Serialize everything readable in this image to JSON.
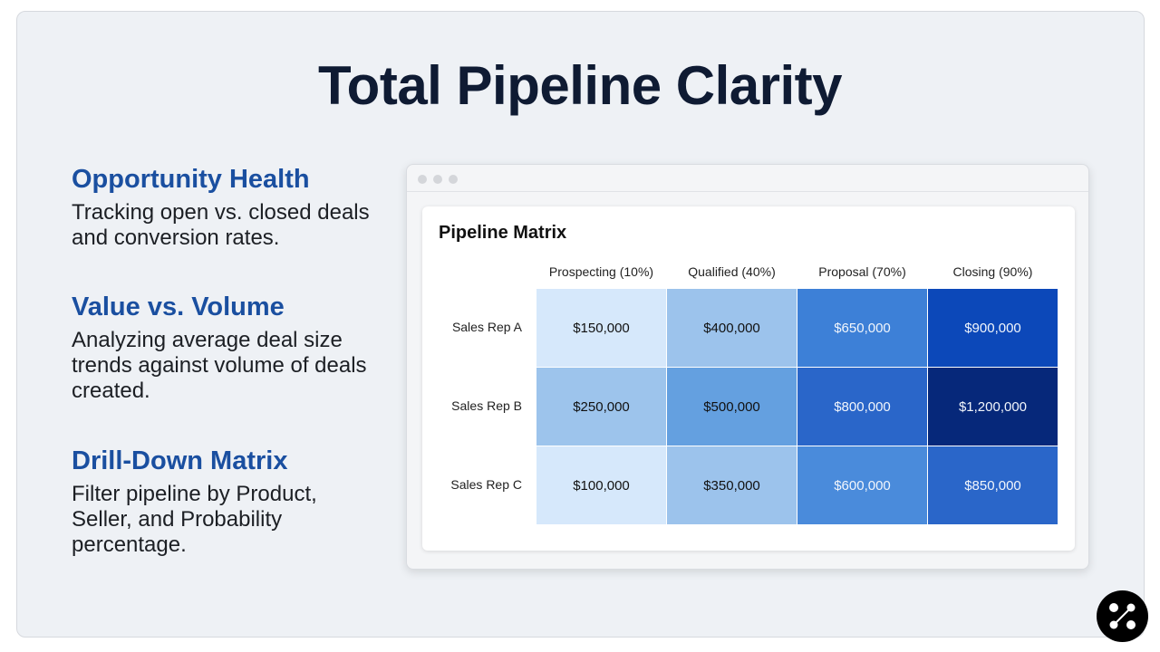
{
  "title": "Total Pipeline Clarity",
  "sections": [
    {
      "heading": "Opportunity Health",
      "body": "Tracking open vs. closed deals and conversion rates."
    },
    {
      "heading": "Value vs. Volume",
      "body": "Analyzing average deal size trends against volume of deals created."
    },
    {
      "heading": "Drill-Down Matrix",
      "body": "Filter pipeline by Product, Seller, and Probability percentage."
    }
  ],
  "chart_data": {
    "type": "heatmap",
    "title": "Pipeline Matrix",
    "columns": [
      "Prospecting (10%)",
      "Qualified (40%)",
      "Proposal (70%)",
      "Closing (90%)"
    ],
    "rows": [
      "Sales Rep A",
      "Sales Rep B",
      "Sales Rep C"
    ],
    "values": [
      [
        150000,
        400000,
        650000,
        900000
      ],
      [
        250000,
        500000,
        800000,
        1200000
      ],
      [
        100000,
        350000,
        600000,
        850000
      ]
    ],
    "labels": [
      [
        "$150,000",
        "$400,000",
        "$650,000",
        "$900,000"
      ],
      [
        "$250,000",
        "$500,000",
        "$800,000",
        "$1,200,000"
      ],
      [
        "$100,000",
        "$350,000",
        "$600,000",
        "$850,000"
      ]
    ],
    "colors": [
      [
        "#d6e8fb",
        "#9cc3ec",
        "#3d80d7",
        "#0c48b9"
      ],
      [
        "#9dc4ec",
        "#64a0e0",
        "#2a66c9",
        "#06287a"
      ],
      [
        "#d6e8fb",
        "#9cc3ec",
        "#4a8bdb",
        "#2a66c9"
      ]
    ]
  }
}
